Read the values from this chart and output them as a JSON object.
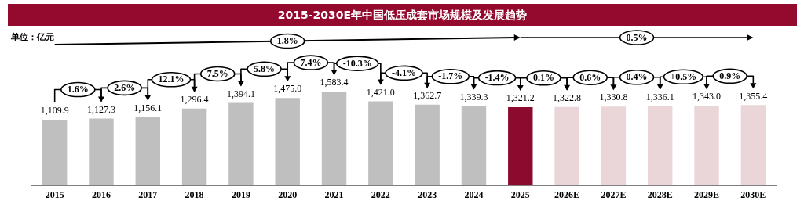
{
  "chart_data": {
    "type": "bar",
    "title": "2015-2030E年中国低压成套市场规模及发展趋势",
    "categories": [
      "2015",
      "2016",
      "2017",
      "2018",
      "2019",
      "2020",
      "2021",
      "2022",
      "2023",
      "2024",
      "2025",
      "2026E",
      "2027E",
      "2028E",
      "2029E",
      "2030E"
    ],
    "values": [
      1109.9,
      1127.3,
      1156.1,
      1296.4,
      1394.1,
      1475.0,
      1583.4,
      1421.0,
      1362.7,
      1339.3,
      1321.2,
      1322.8,
      1330.8,
      1336.1,
      1343.0,
      1355.4
    ],
    "value_labels": [
      "1,109.9",
      "1,127.3",
      "1,156.1",
      "1,296.4",
      "1,394.1",
      "1,475.0",
      "1,583.4",
      "1,421.0",
      "1,362.7",
      "1,339.3",
      "1,321.2",
      "1,322.8",
      "1,330.8",
      "1,336.1",
      "1,343.0",
      "1,355.4"
    ],
    "colors": [
      "#bfbfbf",
      "#bfbfbf",
      "#bfbfbf",
      "#bfbfbf",
      "#bfbfbf",
      "#bfbfbf",
      "#bfbfbf",
      "#bfbfbf",
      "#bfbfbf",
      "#bfbfbf",
      "#8b0a2d",
      "#ead6d9",
      "#ead6d9",
      "#ead6d9",
      "#ead6d9",
      "#ead6d9"
    ],
    "annotations": [
      "单位：亿元",
      "1.8%",
      "0.5%",
      "1.6%",
      "2.6%",
      "12.1%",
      "7.5%",
      "5.8%",
      "7.4%",
      "-10.3%",
      "-4.1%",
      "-1.7%",
      "-1.4%",
      "0.1%",
      "0.6%",
      "0.4%",
      "+0.5%",
      "0.9%"
    ]
  }
}
